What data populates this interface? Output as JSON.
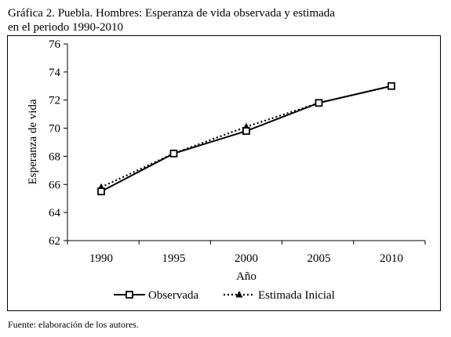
{
  "title_line1": "Gráfica 2. Puebla. Hombres: Esperanza de vida observada y estimada",
  "title_line2": "en el periodo 1990-2010",
  "footer": "Fuente: elaboración de los autores.",
  "chart_data": {
    "type": "line",
    "xlabel": "Año",
    "ylabel": "Esperanza de vida",
    "categories": [
      "1990",
      "1995",
      "2000",
      "2005",
      "2010"
    ],
    "ylim": [
      62,
      76
    ],
    "yticks": [
      62,
      64,
      66,
      68,
      70,
      72,
      74,
      76
    ],
    "grid": false,
    "legend_position": "bottom",
    "series": [
      {
        "name": "Observada",
        "values": [
          65.5,
          68.2,
          69.8,
          71.8,
          73.0
        ],
        "style": "solid",
        "marker": "square"
      },
      {
        "name": "Estimada Inicial",
        "values": [
          65.8,
          68.2,
          70.1,
          71.8,
          73.0
        ],
        "style": "dotted",
        "marker": "triangle"
      }
    ]
  }
}
